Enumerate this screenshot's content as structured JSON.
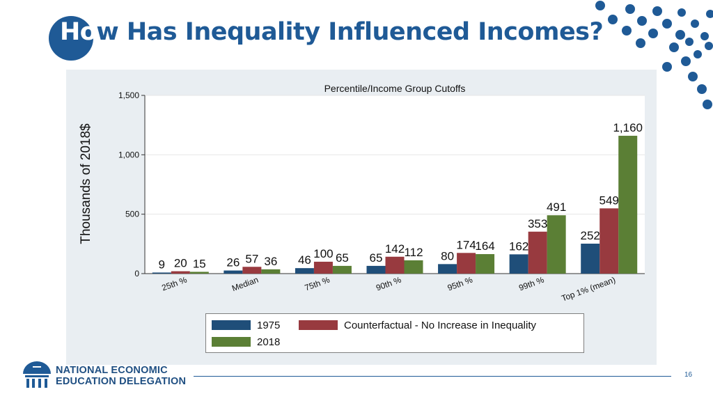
{
  "slide": {
    "title_highlight": "Ho",
    "title_rest": "w Has Inequality Influenced Incomes?",
    "page_number": "16",
    "org_line1": "NATIONAL ECONOMIC",
    "org_line2": "EDUCATION DELEGATION"
  },
  "colors": {
    "brand_blue": "#1f5a96",
    "series_1975": "#1f4e79",
    "series_counterfactual": "#983a3f",
    "series_2018": "#5b7f35",
    "panel_bg": "#e9eef2"
  },
  "chart_data": {
    "type": "bar",
    "title": "Percentile/Income Group Cutoffs",
    "xlabel": "",
    "ylabel": "Thousands of 2018$",
    "ylim": [
      0,
      1500
    ],
    "yticks": [
      0,
      500,
      1000,
      1500
    ],
    "ytick_labels": [
      "0",
      "500",
      "1,000",
      "1,500"
    ],
    "grid": true,
    "legend_position": "bottom",
    "categories": [
      "25th %",
      "Median",
      "75th %",
      "90th %",
      "95th %",
      "99th %",
      "Top 1% (mean)"
    ],
    "series": [
      {
        "name": "1975",
        "values": [
          9,
          26,
          46,
          65,
          80,
          162,
          252
        ],
        "labels": [
          "9",
          "26",
          "46",
          "65",
          "80",
          "162",
          "252"
        ]
      },
      {
        "name": "Counterfactual - No Increase in Inequality",
        "values": [
          20,
          57,
          100,
          142,
          174,
          353,
          549
        ],
        "labels": [
          "20",
          "57",
          "100",
          "142",
          "174",
          "353",
          "549"
        ]
      },
      {
        "name": "2018",
        "values": [
          15,
          36,
          65,
          112,
          164,
          491,
          1160
        ],
        "labels": [
          "15",
          "36",
          "65",
          "112",
          "164",
          "491",
          "1,160"
        ]
      }
    ]
  }
}
